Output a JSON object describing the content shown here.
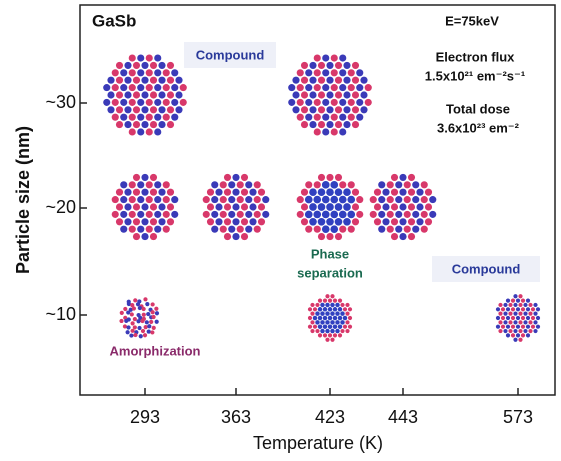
{
  "panel_label": "GaSb",
  "annotations": {
    "energy": "E=75keV",
    "flux_title": "Electron flux",
    "flux_value": "1.5x10²¹ em⁻²s⁻¹",
    "dose_title": "Total dose",
    "dose_value": "3.6x10²³ em⁻²"
  },
  "regions": {
    "compound_top": "Compound",
    "compound_right": "Compound",
    "phase_separation": [
      "Phase",
      "separation"
    ],
    "amorphization": "Amorphization"
  },
  "x_axis": {
    "title": "Temperature  (K)",
    "ticks": [
      "293",
      "363",
      "423",
      "443",
      "573"
    ]
  },
  "y_axis": {
    "title": "Particle size (nm)",
    "ticks": [
      "~30",
      "~20",
      "~10"
    ]
  }
}
